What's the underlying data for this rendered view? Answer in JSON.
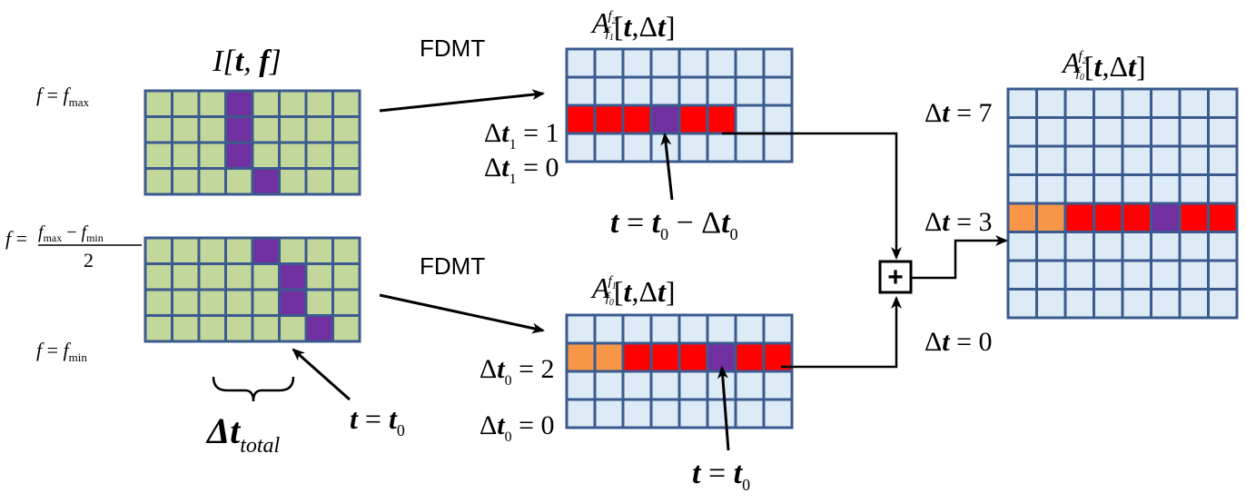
{
  "colors": {
    "grid_line": "#3b5a8f",
    "input_cell": "#c4d79b",
    "output_cell": "#dcebf5",
    "highlight": "#7030a0",
    "red": "#ff0000",
    "orange": "#f79646",
    "arrow": "#000000"
  },
  "labels": {
    "fdmt_top": "FDMT",
    "fdmt_bottom": "FDMT",
    "input_title": "I[t, f]",
    "top_mid_title": "A[t,Δt]",
    "bottom_mid_title": "A[t,Δt]",
    "right_title": "A[t,Δt]",
    "f_max": "f = fmax",
    "f_mid": "f = (fmax − fmin)/2",
    "f_min": "f = fmin",
    "delta_total": "Δt total",
    "t_eq_t0_left": "t = t0",
    "t_eq_t0_minus": "t = t0 − Δt0",
    "t_eq_t0_bottom": "t = t0",
    "dt1_eq_1": "Δt1 = 1",
    "dt1_eq_0": "Δt1 = 0",
    "dt0_eq_2": "Δt0 = 2",
    "dt0_eq_0": "Δt0 = 0",
    "dt_eq_7": "Δt = 7",
    "dt_eq_3": "Δt = 3",
    "dt_eq_0": "Δt = 0",
    "plus_symbol": "+"
  },
  "grids": {
    "input_top": {
      "cols": 8,
      "rows": 4,
      "highlight": [
        [
          3,
          0
        ],
        [
          3,
          1
        ],
        [
          3,
          2
        ],
        [
          4,
          3
        ]
      ]
    },
    "input_bottom": {
      "cols": 8,
      "rows": 4,
      "highlight": [
        [
          4,
          0
        ],
        [
          5,
          1
        ],
        [
          5,
          2
        ],
        [
          6,
          3
        ]
      ]
    },
    "mid_top": {
      "cols": 8,
      "rows": 4,
      "row_colors": {
        "2": [
          "red",
          "red",
          "red",
          "highlight",
          "red",
          "red",
          "output",
          "output"
        ]
      }
    },
    "mid_bottom": {
      "cols": 8,
      "rows": 4,
      "row_colors": {
        "1": [
          "orange",
          "orange",
          "red",
          "red",
          "red",
          "highlight",
          "red",
          "red"
        ]
      }
    },
    "right": {
      "cols": 8,
      "rows": 8,
      "row_colors": {
        "4": [
          "orange",
          "orange",
          "red",
          "red",
          "red",
          "highlight",
          "red",
          "red"
        ]
      }
    }
  }
}
